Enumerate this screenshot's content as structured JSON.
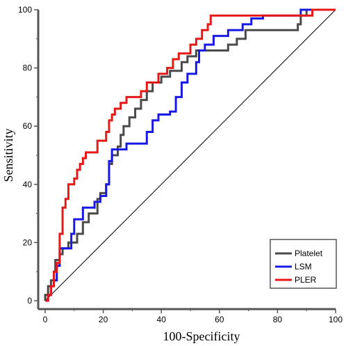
{
  "chart_data": {
    "type": "line",
    "title": "",
    "xlabel": "100-Specificity",
    "ylabel": "Sensitivity",
    "xlim": [
      0,
      100
    ],
    "ylim": [
      0,
      100
    ],
    "x_ticks": [
      "0",
      "20",
      "40",
      "60",
      "80",
      "100"
    ],
    "y_ticks": [
      "0",
      "20",
      "40",
      "60",
      "80",
      "100"
    ],
    "legend_position": "bottom-right",
    "grid": false,
    "reference_line": {
      "x": [
        0,
        100
      ],
      "y": [
        0,
        100
      ]
    },
    "series": [
      {
        "name": "Platelet",
        "color": "#4a4a4a",
        "points": [
          [
            0,
            0
          ],
          [
            0,
            2
          ],
          [
            1,
            2
          ],
          [
            1,
            5
          ],
          [
            2,
            5
          ],
          [
            2,
            7
          ],
          [
            3,
            7
          ],
          [
            3,
            10
          ],
          [
            3.5,
            10
          ],
          [
            3.5,
            14
          ],
          [
            5,
            14
          ],
          [
            5,
            16
          ],
          [
            6,
            16
          ],
          [
            6,
            18
          ],
          [
            8,
            18
          ],
          [
            8,
            20
          ],
          [
            11,
            20
          ],
          [
            11,
            23
          ],
          [
            13,
            23
          ],
          [
            13,
            27
          ],
          [
            15,
            27
          ],
          [
            15,
            30
          ],
          [
            18,
            30
          ],
          [
            18,
            35
          ],
          [
            19,
            35
          ],
          [
            19,
            37
          ],
          [
            21,
            37
          ],
          [
            21,
            40
          ],
          [
            22,
            40
          ],
          [
            22,
            47
          ],
          [
            23,
            47
          ],
          [
            23,
            50
          ],
          [
            25,
            50
          ],
          [
            25,
            53
          ],
          [
            26,
            53
          ],
          [
            26,
            57
          ],
          [
            27,
            57
          ],
          [
            27,
            60
          ],
          [
            29,
            60
          ],
          [
            29,
            63
          ],
          [
            31,
            63
          ],
          [
            31,
            66
          ],
          [
            33,
            66
          ],
          [
            33,
            69
          ],
          [
            35,
            69
          ],
          [
            35,
            72
          ],
          [
            37,
            72
          ],
          [
            37,
            75
          ],
          [
            40,
            75
          ],
          [
            40,
            77
          ],
          [
            43,
            77
          ],
          [
            43,
            79
          ],
          [
            47,
            79
          ],
          [
            47,
            82
          ],
          [
            49,
            82
          ],
          [
            49,
            84
          ],
          [
            52,
            84
          ],
          [
            52,
            86
          ],
          [
            63,
            86
          ],
          [
            63,
            88
          ],
          [
            66,
            88
          ],
          [
            66,
            90
          ],
          [
            69,
            90
          ],
          [
            69,
            93
          ],
          [
            87,
            93
          ],
          [
            87,
            95
          ],
          [
            88,
            95
          ],
          [
            88,
            98
          ],
          [
            90,
            98
          ],
          [
            90,
            100
          ],
          [
            100,
            100
          ]
        ]
      },
      {
        "name": "LSM",
        "color": "#1919e6",
        "points": [
          [
            0,
            0
          ],
          [
            1,
            0
          ],
          [
            1,
            2
          ],
          [
            2,
            2
          ],
          [
            2,
            5
          ],
          [
            3,
            5
          ],
          [
            3,
            7
          ],
          [
            4,
            7
          ],
          [
            4,
            12
          ],
          [
            5,
            12
          ],
          [
            5,
            18
          ],
          [
            9,
            18
          ],
          [
            9,
            23
          ],
          [
            10,
            23
          ],
          [
            10,
            28
          ],
          [
            13,
            28
          ],
          [
            13,
            32
          ],
          [
            17,
            32
          ],
          [
            17,
            34
          ],
          [
            19,
            34
          ],
          [
            19,
            36
          ],
          [
            21,
            36
          ],
          [
            21,
            40
          ],
          [
            22,
            40
          ],
          [
            22,
            48
          ],
          [
            23,
            48
          ],
          [
            23,
            52
          ],
          [
            28,
            52
          ],
          [
            28,
            54
          ],
          [
            35,
            54
          ],
          [
            35,
            58
          ],
          [
            37,
            58
          ],
          [
            37,
            62
          ],
          [
            39,
            62
          ],
          [
            39,
            64
          ],
          [
            43,
            64
          ],
          [
            43,
            65
          ],
          [
            45,
            65
          ],
          [
            45,
            70
          ],
          [
            47,
            70
          ],
          [
            47,
            75
          ],
          [
            49,
            75
          ],
          [
            49,
            78
          ],
          [
            52,
            78
          ],
          [
            52,
            82
          ],
          [
            53,
            82
          ],
          [
            53,
            86
          ],
          [
            55,
            86
          ],
          [
            55,
            88
          ],
          [
            58,
            88
          ],
          [
            58,
            91
          ],
          [
            63,
            91
          ],
          [
            63,
            93
          ],
          [
            68,
            93
          ],
          [
            68,
            95
          ],
          [
            71,
            95
          ],
          [
            71,
            97
          ],
          [
            75,
            97
          ],
          [
            75,
            98
          ],
          [
            88,
            98
          ],
          [
            88,
            100
          ],
          [
            100,
            100
          ]
        ]
      },
      {
        "name": "PLER",
        "color": "#e61919",
        "points": [
          [
            0,
            0
          ],
          [
            1,
            0
          ],
          [
            1,
            2
          ],
          [
            2,
            2
          ],
          [
            2,
            5
          ],
          [
            3,
            5
          ],
          [
            3,
            10
          ],
          [
            4,
            10
          ],
          [
            4,
            13
          ],
          [
            5,
            13
          ],
          [
            5,
            23
          ],
          [
            6,
            23
          ],
          [
            6,
            32
          ],
          [
            7,
            32
          ],
          [
            7,
            35
          ],
          [
            8,
            35
          ],
          [
            8,
            40
          ],
          [
            10,
            40
          ],
          [
            10,
            42
          ],
          [
            11,
            42
          ],
          [
            11,
            45
          ],
          [
            12,
            45
          ],
          [
            12,
            47
          ],
          [
            13,
            47
          ],
          [
            13,
            49
          ],
          [
            14,
            49
          ],
          [
            14,
            51
          ],
          [
            18,
            51
          ],
          [
            18,
            55
          ],
          [
            21,
            55
          ],
          [
            21,
            58
          ],
          [
            22,
            58
          ],
          [
            22,
            62
          ],
          [
            23,
            62
          ],
          [
            23,
            64
          ],
          [
            24,
            64
          ],
          [
            24,
            66
          ],
          [
            26,
            66
          ],
          [
            26,
            68
          ],
          [
            28,
            68
          ],
          [
            28,
            70
          ],
          [
            33,
            70
          ],
          [
            33,
            72
          ],
          [
            35,
            72
          ],
          [
            35,
            75
          ],
          [
            39,
            75
          ],
          [
            39,
            78
          ],
          [
            42,
            78
          ],
          [
            42,
            80
          ],
          [
            44,
            80
          ],
          [
            44,
            83
          ],
          [
            46,
            83
          ],
          [
            46,
            85
          ],
          [
            50,
            85
          ],
          [
            50,
            88
          ],
          [
            52,
            88
          ],
          [
            52,
            90
          ],
          [
            54,
            90
          ],
          [
            54,
            93
          ],
          [
            56,
            93
          ],
          [
            56,
            95
          ],
          [
            57,
            95
          ],
          [
            57,
            98
          ],
          [
            92,
            98
          ],
          [
            92,
            100
          ],
          [
            100,
            100
          ]
        ]
      }
    ]
  }
}
